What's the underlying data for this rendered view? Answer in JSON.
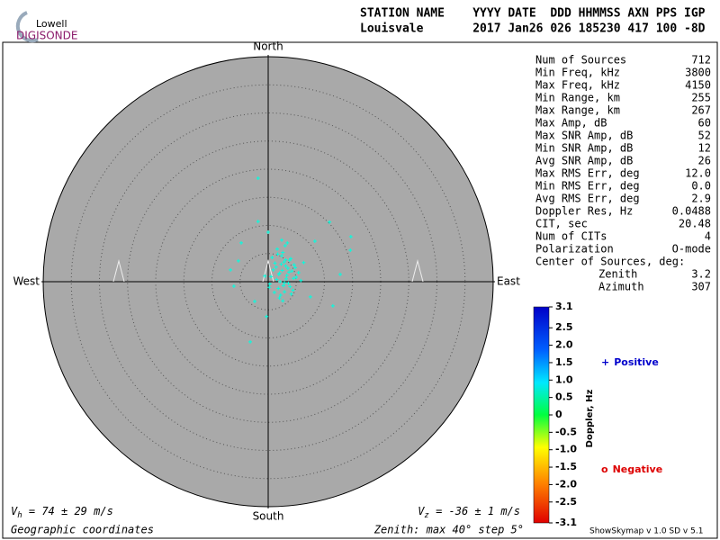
{
  "logo": {
    "top": "Lowell",
    "bottom": "DIGISONDE"
  },
  "header": {
    "line1": "STATION NAME    YYYY DATE  DDD HHMMSS AXN PPS IGP",
    "line2": "Louisvale       2017 Jan26 026 185230 417 100 -8D"
  },
  "stats": [
    [
      "Num of Sources",
      "712"
    ],
    [
      "Min Freq, kHz",
      "3800"
    ],
    [
      "Max Freq, kHz",
      "4150"
    ],
    [
      "Min Range, km",
      "255"
    ],
    [
      "Max Range, km",
      "267"
    ],
    [
      "Max Amp, dB",
      "60"
    ],
    [
      "Max SNR Amp, dB",
      "52"
    ],
    [
      "Min SNR Amp, dB",
      "12"
    ],
    [
      "Avg SNR Amp, dB",
      "26"
    ],
    [
      "Max RMS Err, deg",
      "12.0"
    ],
    [
      "Min RMS Err, deg",
      "0.0"
    ],
    [
      "Avg RMS Err, deg",
      "2.9"
    ],
    [
      "Doppler Res, Hz",
      "0.0488"
    ],
    [
      "CIT, sec",
      "20.48"
    ],
    [
      "Num of CITs",
      "4"
    ],
    [
      "Polarization",
      "O-mode"
    ]
  ],
  "center": {
    "title": "Center of Sources, deg:",
    "rows": [
      [
        "Zenith",
        "3.2"
      ],
      [
        "Azimuth",
        "307"
      ]
    ]
  },
  "chart_data": {
    "type": "scatter",
    "directions": {
      "north": "North",
      "south": "South",
      "east": "East",
      "west": "West"
    },
    "xlim": [
      -40,
      40
    ],
    "ylim": [
      -40,
      40
    ],
    "ring_step": 5,
    "series": [
      {
        "name": "Positive",
        "color": "#00ffe0",
        "x": [
          2.0,
          3.1,
          1.5,
          4.2,
          2.8,
          3.6,
          0.9,
          2.4,
          5.0,
          1.8,
          3.3,
          2.6,
          4.6,
          1.2,
          3.9,
          2.1,
          0.5,
          4.0,
          2.9,
          3.5,
          1.6,
          2.2,
          5.4,
          0.3,
          3.0,
          2.5,
          4.4,
          1.9,
          3.8,
          2.7,
          1.1,
          4.8,
          2.3,
          3.2,
          0.7,
          5.8,
          2.0,
          3.4,
          1.4,
          4.1,
          6.3,
          -0.6,
          2.6,
          3.7,
          1.7,
          4.5,
          2.9,
          0.2,
          3.1,
          2.4,
          -1.8,
          10.9,
          14.7,
          14.6,
          -1.8,
          -3.2,
          -0.3,
          11.5,
          7.5,
          -6.7,
          -5.3,
          -4.8,
          0.0,
          8.3,
          12.8,
          -6.1,
          -2.4
        ],
        "values": [
          1.5,
          2.8,
          0.4,
          1.9,
          3.5,
          -0.3,
          2.1,
          4.6,
          0.8,
          -1.2,
          1.1,
          5.2,
          3.0,
          3.3,
          -0.9,
          0.0,
          0.9,
          4.1,
          -1.8,
          2.4,
          5.8,
          -2.4,
          1.6,
          -0.4,
          6.4,
          2.0,
          -1.5,
          1.3,
          3.8,
          -0.7,
          -1.9,
          2.5,
          3.1,
          0.5,
          4.3,
          0.2,
          -2.9,
          6.9,
          2.6,
          -2.2,
          3.4,
          1.0,
          -3.4,
          1.7,
          4.9,
          0.6,
          -0.2,
          -1.0,
          3.9,
          7.4,
          18.4,
          10.6,
          8.0,
          5.6,
          10.7,
          -10.7,
          -6.2,
          -4.3,
          -2.7,
          2.1,
          3.7,
          6.9,
          8.8,
          7.2,
          1.3,
          -0.8,
          -3.5
        ]
      }
    ],
    "colorbar": {
      "label": "Doppler, Hz",
      "lim": [
        -3.1,
        3.1
      ],
      "ticks": [
        3.1,
        2.5,
        {
          "value": 2,
          "label": "2.0"
        },
        1.5,
        {
          "value": 1,
          "label": "1.0"
        },
        0.5,
        0,
        -0.5,
        {
          "value": -1,
          "label": "-1.0"
        },
        -1.5,
        {
          "value": -2,
          "label": "-2.0"
        },
        -2.5,
        -3.1
      ]
    },
    "legend": [
      {
        "symbol": "+",
        "label": "Positive",
        "color": "#0000cc"
      },
      {
        "symbol": "o",
        "label": "Negative",
        "color": "#dd0000"
      }
    ]
  },
  "footer": {
    "vh": {
      "symbol": "V",
      "sub": "h",
      "text": " = 74 ± 29 m/s"
    },
    "vz": {
      "symbol": "V",
      "sub": "z",
      "text": " = -36 ± 1 m/s"
    },
    "coords": "Geographic coordinates",
    "zenith": "Zenith: max 40°  step 5°",
    "version": "ShowSkymap v 1.0  SD v 5.1"
  }
}
